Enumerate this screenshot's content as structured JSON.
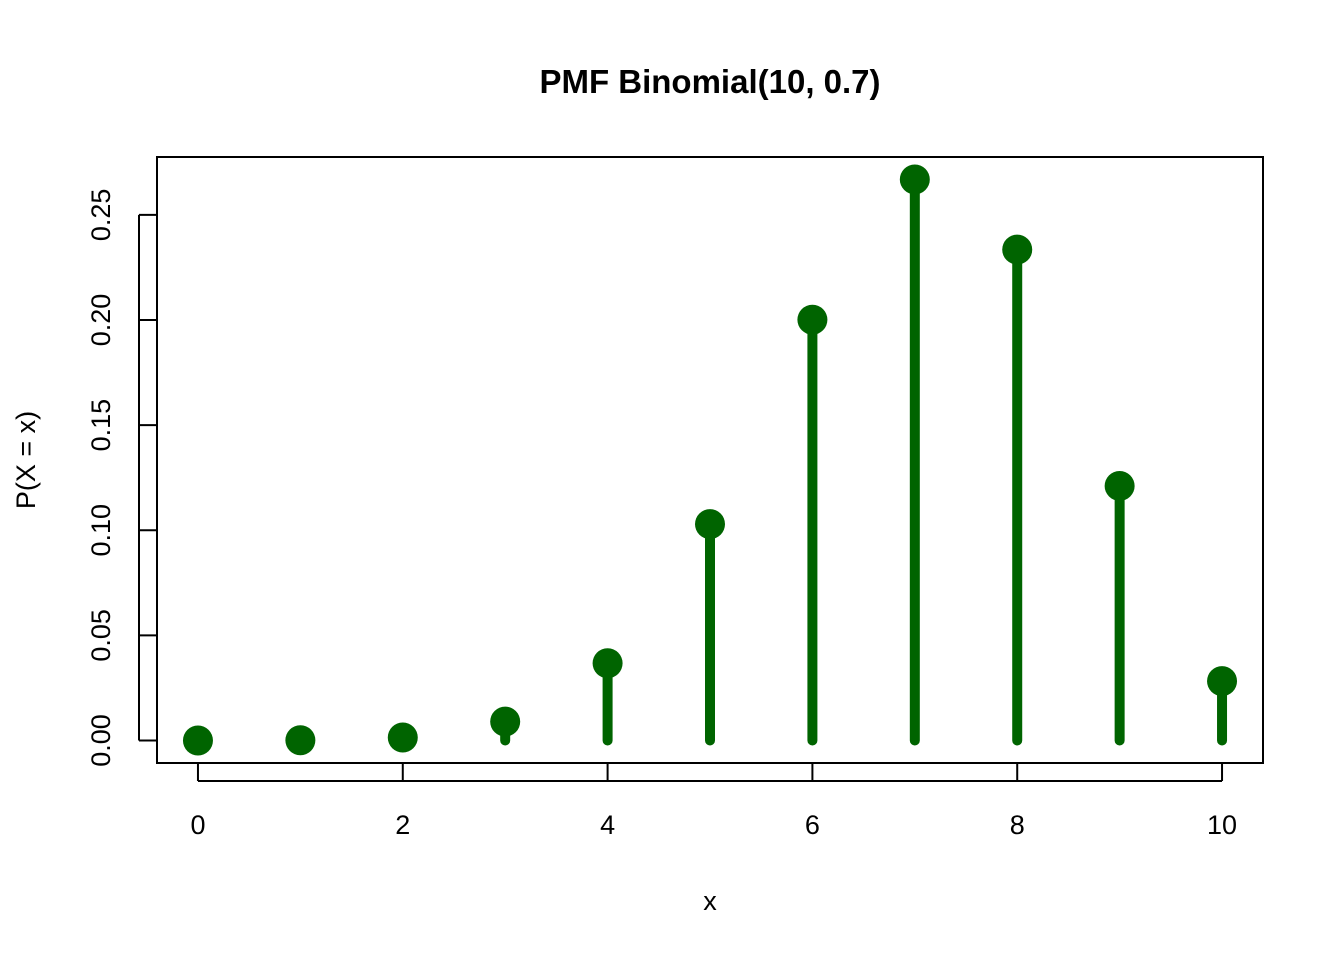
{
  "chart_data": {
    "type": "scatter",
    "subtype": "lollipop",
    "title": "PMF Binomial(10, 0.7)",
    "xlabel": "x",
    "ylabel": "P(X = x)",
    "xlim": [
      -0.4,
      10.4
    ],
    "ylim": [
      -0.0107,
      0.2775
    ],
    "x_ticks": [
      "0",
      "2",
      "4",
      "6",
      "8",
      "10"
    ],
    "y_ticks": [
      "0.00",
      "0.05",
      "0.10",
      "0.15",
      "0.20",
      "0.25"
    ],
    "grid": false,
    "color": "#006400",
    "x": [
      0,
      1,
      2,
      3,
      4,
      5,
      6,
      7,
      8,
      9,
      10
    ],
    "values": [
      5.9e-06,
      0.0001378,
      0.0014467,
      0.0090017,
      0.0367569,
      0.1029193,
      0.2001209,
      0.2668279,
      0.2334744,
      0.1210608,
      0.0282475
    ]
  }
}
